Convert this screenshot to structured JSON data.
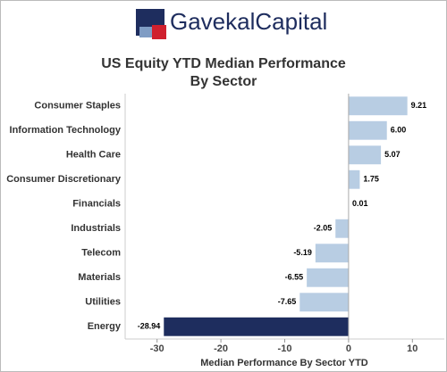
{
  "chart_data": {
    "type": "hbar",
    "logo": "GavekalCapital",
    "title": [
      "US Equity YTD Median Performance",
      "By Sector"
    ],
    "x_label": "Median Performance By Sector YTD",
    "categories": [
      "Consumer Staples",
      "Information Technology",
      "Health Care",
      "Consumer Discretionary",
      "Financials",
      "Industrials",
      "Telecom",
      "Materials",
      "Utilities",
      "Energy"
    ],
    "values": [
      9.21,
      6.0,
      5.07,
      1.75,
      0.01,
      -2.05,
      -5.19,
      -6.55,
      -7.65,
      -28.94
    ],
    "value_labels": [
      "9.21",
      "6.00",
      "5.07",
      "1.75",
      "0.01",
      "-2.05",
      "-5.19",
      "-6.55",
      "-7.65",
      "-28.94"
    ],
    "colors": [
      "#b8cde3",
      "#b8cde3",
      "#b8cde3",
      "#b8cde3",
      "#b8cde3",
      "#b8cde3",
      "#b8cde3",
      "#b8cde3",
      "#b8cde3",
      "#1e2d5e"
    ],
    "xlim": [
      -35,
      15
    ],
    "xticks": [
      -30,
      -20,
      -10,
      0,
      10
    ]
  }
}
